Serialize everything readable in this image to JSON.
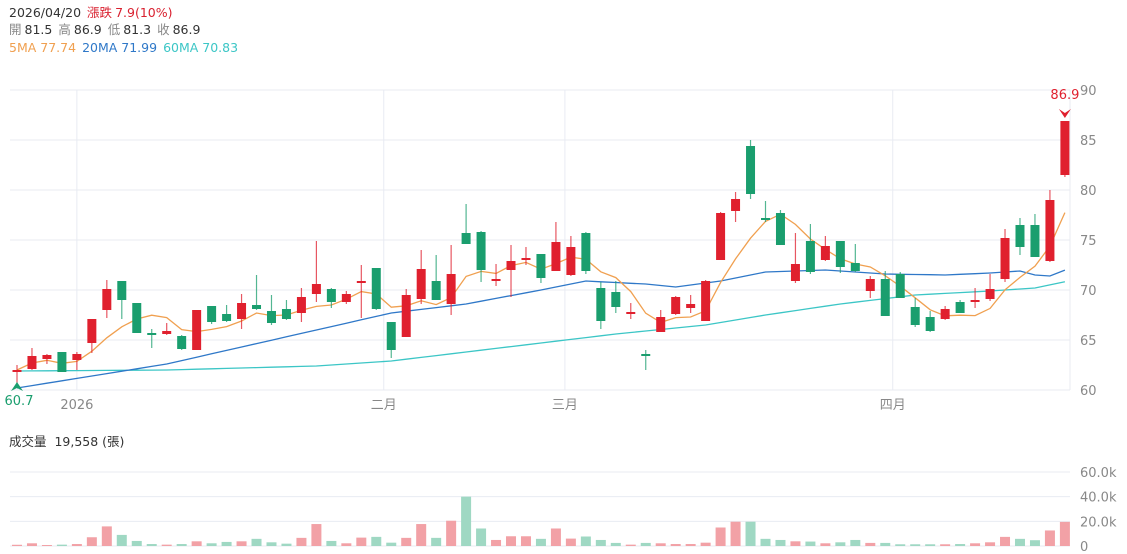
{
  "header": {
    "date": "2026/04/20",
    "change_label": "漲跌",
    "change_value": "7.9(10%)",
    "open_label": "開",
    "open": "81.5",
    "high_label": "高",
    "high": "86.9",
    "low_label": "低",
    "low": "81.3",
    "close_label": "收",
    "close": "86.9",
    "ma5": "5MA 77.74",
    "ma20": "20MA 71.99",
    "ma60": "60MA 70.83"
  },
  "volume_header": {
    "label": "成交量",
    "value": "19,558 (張)"
  },
  "colors": {
    "up": "#e0202e",
    "down": "#1a9e6e",
    "vol_up": "#f2a1a6",
    "vol_down": "#9fd8c3",
    "ma5": "#f0a050",
    "ma20": "#2f78c8",
    "ma60": "#3cc6c6",
    "grid": "#e8ebf2"
  },
  "chart_data": {
    "type": "candlestick",
    "title": "",
    "price_axis": {
      "ticks": [
        "60",
        "65",
        "70",
        "75",
        "80",
        "85",
        "90"
      ],
      "range": [
        60,
        90
      ]
    },
    "volume_axis": {
      "ticks": [
        "0",
        "20.0k",
        "40.0k",
        "60.0k"
      ],
      "range": [
        0,
        60000
      ]
    },
    "x_labels": [
      {
        "index": 4,
        "label": "2026"
      },
      {
        "index": 24.5,
        "label": "二月"
      },
      {
        "index": 36.6,
        "label": "三月"
      },
      {
        "index": 58.5,
        "label": "四月"
      }
    ],
    "max_marker": {
      "index": 70,
      "label": "86.9"
    },
    "min_marker": {
      "index": 0,
      "label": "60.7"
    },
    "ohlc": [
      [
        61.9,
        62.0,
        62.5,
        60.7
      ],
      [
        62.1,
        63.4,
        64.2,
        62.0
      ],
      [
        63.1,
        63.5,
        63.6,
        62.6
      ],
      [
        63.8,
        61.8,
        63.8,
        61.8
      ],
      [
        63.0,
        63.6,
        63.8,
        62.0
      ],
      [
        64.7,
        67.1,
        67.1,
        63.7
      ],
      [
        68.0,
        70.1,
        71.0,
        67.2
      ],
      [
        70.9,
        69.0,
        70.9,
        67.1
      ],
      [
        68.7,
        65.7,
        68.7,
        65.7
      ],
      [
        65.7,
        65.5,
        66.1,
        64.2
      ],
      [
        65.6,
        65.9,
        66.7,
        65.5
      ],
      [
        65.4,
        64.1,
        65.5,
        64.0
      ],
      [
        64.0,
        68.0,
        68.0,
        64.0
      ],
      [
        68.4,
        66.8,
        68.4,
        66.6
      ],
      [
        67.6,
        66.9,
        68.5,
        66.8
      ],
      [
        67.1,
        68.7,
        69.6,
        66.1
      ],
      [
        68.5,
        68.1,
        71.5,
        68.0
      ],
      [
        67.9,
        66.7,
        69.5,
        66.5
      ],
      [
        68.1,
        67.1,
        69.0,
        67.0
      ],
      [
        67.7,
        69.3,
        70.2,
        66.8
      ],
      [
        69.6,
        70.6,
        74.9,
        68.8
      ],
      [
        70.1,
        68.8,
        70.2,
        68.2
      ],
      [
        68.8,
        69.6,
        69.9,
        68.6
      ],
      [
        70.8,
        70.9,
        72.5,
        67.2
      ],
      [
        72.2,
        68.1,
        72.2,
        68.0
      ],
      [
        66.8,
        64.0,
        66.8,
        63.2
      ],
      [
        65.3,
        69.5,
        70.1,
        65.3
      ],
      [
        69.1,
        72.1,
        74.0,
        68.6
      ],
      [
        70.9,
        69.0,
        73.5,
        69.0
      ],
      [
        68.6,
        71.6,
        74.5,
        67.5
      ],
      [
        75.7,
        74.6,
        78.6,
        74.6
      ],
      [
        75.8,
        72.0,
        75.9,
        70.8
      ],
      [
        71.0,
        71.1,
        72.6,
        70.4
      ],
      [
        72.0,
        72.9,
        74.5,
        69.3
      ],
      [
        73.1,
        73.2,
        74.3,
        72.5
      ],
      [
        73.6,
        71.2,
        73.6,
        70.7
      ],
      [
        71.9,
        74.8,
        76.8,
        71.9
      ],
      [
        71.5,
        74.3,
        75.4,
        71.4
      ],
      [
        75.7,
        71.9,
        75.8,
        71.6
      ],
      [
        70.2,
        66.9,
        70.8,
        66.1
      ],
      [
        69.8,
        68.3,
        70.9,
        67.7
      ],
      [
        67.7,
        67.8,
        68.7,
        67.1
      ],
      [
        63.6,
        63.5,
        64.0,
        62.0
      ],
      [
        65.8,
        67.3,
        68.0,
        65.8
      ],
      [
        67.6,
        69.3,
        69.4,
        67.5
      ],
      [
        68.2,
        68.6,
        69.5,
        67.7
      ],
      [
        66.9,
        70.9,
        71.0,
        66.9
      ],
      [
        73.0,
        77.7,
        77.8,
        73.0
      ],
      [
        77.9,
        79.1,
        79.8,
        76.8
      ],
      [
        84.4,
        79.6,
        85.0,
        79.1
      ],
      [
        77.2,
        77.0,
        78.9,
        76.8
      ],
      [
        77.7,
        74.5,
        78.0,
        74.5
      ],
      [
        70.9,
        72.6,
        75.7,
        70.7
      ],
      [
        74.9,
        71.8,
        76.6,
        71.6
      ],
      [
        73.0,
        74.4,
        75.4,
        72.9
      ],
      [
        74.9,
        72.3,
        74.9,
        71.7
      ],
      [
        72.7,
        71.9,
        74.6,
        71.8
      ],
      [
        69.9,
        71.1,
        71.4,
        69.2
      ],
      [
        71.1,
        67.4,
        71.9,
        67.4
      ],
      [
        71.6,
        69.2,
        71.8,
        69.2
      ],
      [
        68.3,
        66.5,
        69.2,
        66.3
      ],
      [
        67.3,
        65.9,
        67.9,
        65.8
      ],
      [
        67.1,
        68.1,
        68.4,
        67.0
      ],
      [
        68.8,
        67.7,
        69.0,
        67.7
      ],
      [
        68.8,
        69.0,
        70.2,
        68.2
      ],
      [
        69.1,
        70.1,
        71.6,
        68.9
      ],
      [
        71.1,
        75.2,
        76.1,
        70.8
      ],
      [
        76.5,
        74.3,
        77.2,
        73.5
      ],
      [
        76.5,
        73.3,
        77.6,
        73.3
      ],
      [
        72.9,
        79.0,
        80.0,
        72.8
      ],
      [
        81.5,
        86.9,
        86.9,
        81.3
      ]
    ],
    "volume": [
      1000,
      2200,
      800,
      1100,
      1600,
      7100,
      15900,
      9000,
      4100,
      1600,
      1100,
      1600,
      3800,
      2200,
      3300,
      3800,
      5800,
      3000,
      1900,
      6600,
      17800,
      4100,
      2200,
      6800,
      7400,
      2700,
      6600,
      17800,
      6600,
      20500,
      40000,
      14200,
      4900,
      7900,
      7900,
      5800,
      14200,
      6000,
      7700,
      4900,
      2500,
      1100,
      2500,
      2200,
      1600,
      1600,
      2700,
      15000,
      19700,
      19700,
      5800,
      4900,
      3800,
      3600,
      2200,
      3000,
      4900,
      2500,
      2500,
      1400,
      1400,
      1400,
      1400,
      1600,
      2200,
      3000,
      7400,
      5800,
      4700,
      12600,
      19558
    ],
    "ma20": [
      [
        0,
        60.2
      ],
      [
        10,
        62.6
      ],
      [
        20,
        66.0
      ],
      [
        25,
        67.7
      ],
      [
        30,
        68.6
      ],
      [
        35,
        70.0
      ],
      [
        38,
        70.9
      ],
      [
        42,
        70.6
      ],
      [
        44,
        70.3
      ],
      [
        47,
        70.9
      ],
      [
        50,
        71.8
      ],
      [
        54,
        72.0
      ],
      [
        58,
        71.6
      ],
      [
        62,
        71.5
      ],
      [
        65,
        71.7
      ],
      [
        67,
        71.9
      ],
      [
        68,
        71.5
      ],
      [
        69,
        71.4
      ],
      [
        70,
        71.99
      ]
    ],
    "ma60": [
      [
        0,
        61.9
      ],
      [
        10,
        62.0
      ],
      [
        20,
        62.4
      ],
      [
        25,
        62.9
      ],
      [
        30,
        63.8
      ],
      [
        35,
        64.7
      ],
      [
        40,
        65.6
      ],
      [
        46,
        66.5
      ],
      [
        50,
        67.5
      ],
      [
        55,
        68.6
      ],
      [
        60,
        69.5
      ],
      [
        65,
        69.9
      ],
      [
        68,
        70.2
      ],
      [
        70,
        70.83
      ]
    ]
  }
}
